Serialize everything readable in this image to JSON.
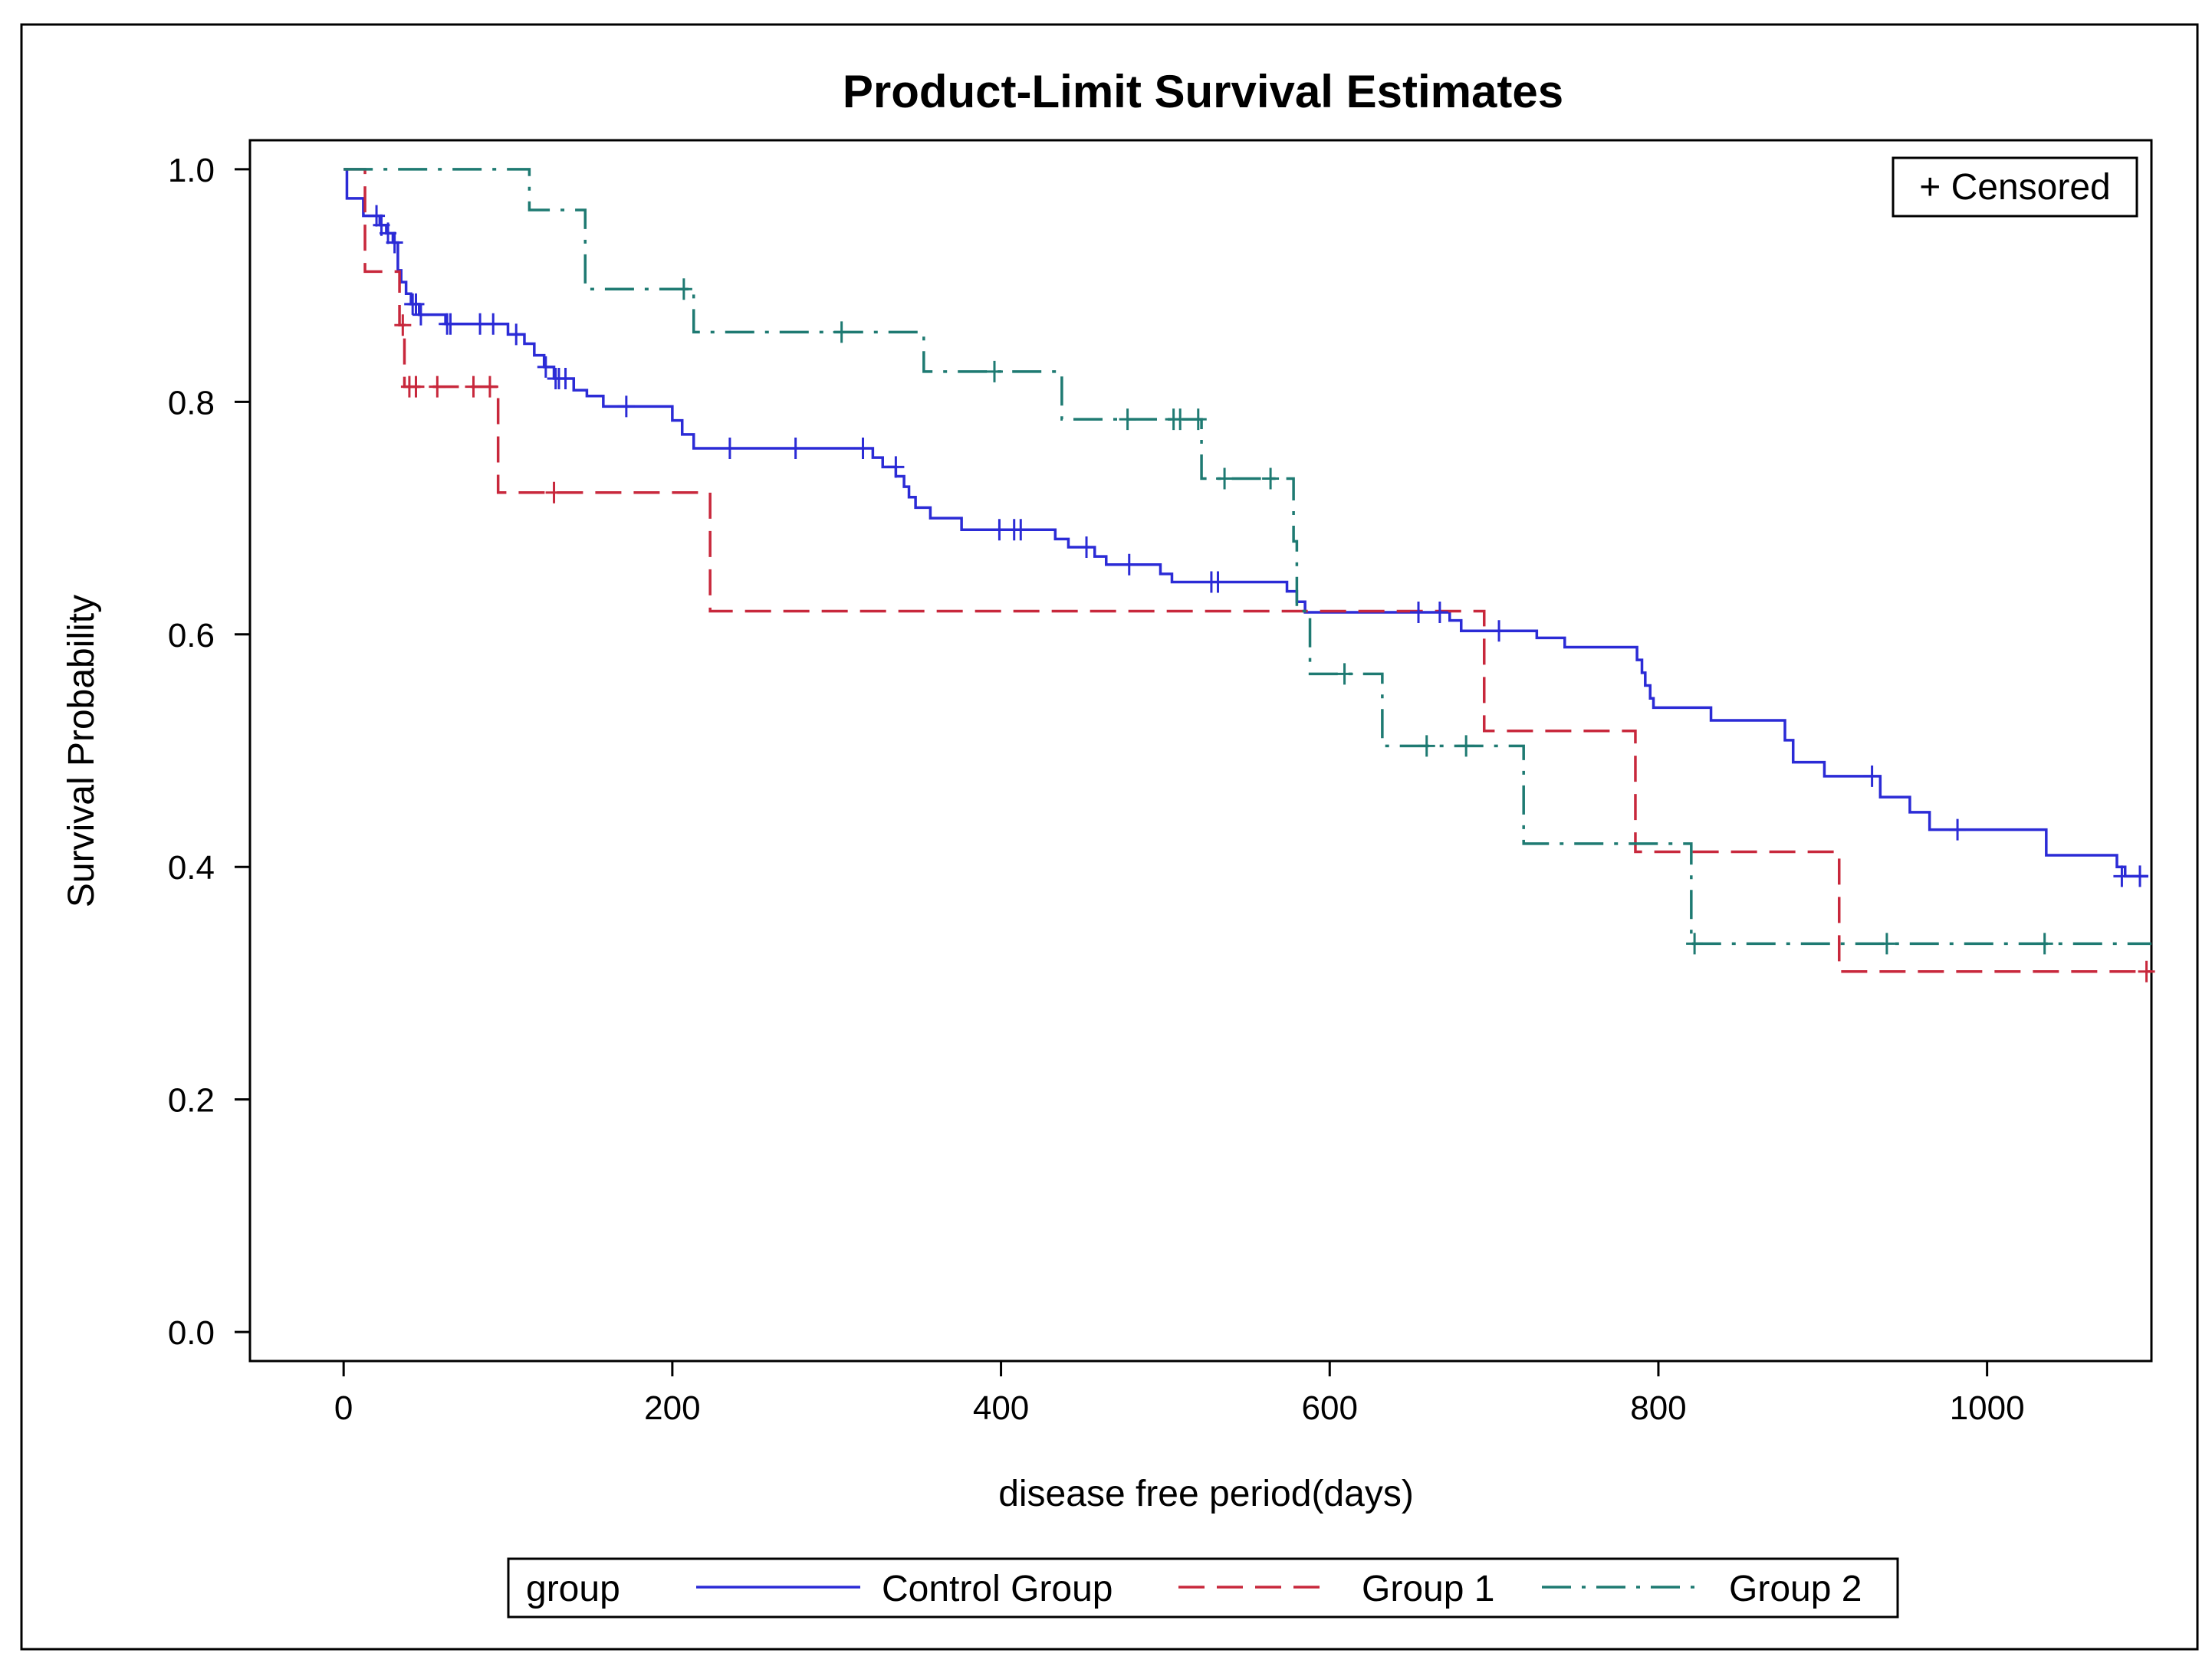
{
  "chart_data": {
    "type": "line",
    "title": "Product-Limit Survival Estimates",
    "xlabel": "disease free period(days)",
    "ylabel": "Survival Probability",
    "xlim": [
      -57,
      1100
    ],
    "ylim": [
      -0.025,
      1.025
    ],
    "x_ticks": [
      0,
      200,
      400,
      600,
      800,
      1000
    ],
    "x_tick_labels": [
      "0",
      "200",
      "400",
      "600",
      "800",
      "1000"
    ],
    "y_ticks": [
      0.0,
      0.2,
      0.4,
      0.6,
      0.8,
      1.0
    ],
    "y_tick_labels": [
      "0.0",
      "0.2",
      "0.4",
      "0.6",
      "0.8",
      "1.0"
    ],
    "censored_legend": "+ Censored",
    "legend_title": "group",
    "legend_position": "bottom",
    "series": [
      {
        "name": "Control Group",
        "color": "#2b2bd6",
        "dash": "solid",
        "steps": [
          [
            0,
            1.0
          ],
          [
            2,
            0.975
          ],
          [
            12,
            0.96
          ],
          [
            22,
            0.952
          ],
          [
            26,
            0.945
          ],
          [
            30,
            0.937
          ],
          [
            33,
            0.913
          ],
          [
            35,
            0.903
          ],
          [
            38,
            0.893
          ],
          [
            41,
            0.884
          ],
          [
            46,
            0.875
          ],
          [
            62,
            0.867
          ],
          [
            100,
            0.858
          ],
          [
            110,
            0.85
          ],
          [
            116,
            0.84
          ],
          [
            122,
            0.83
          ],
          [
            128,
            0.82
          ],
          [
            140,
            0.81
          ],
          [
            148,
            0.805
          ],
          [
            158,
            0.796
          ],
          [
            200,
            0.784
          ],
          [
            206,
            0.772
          ],
          [
            213,
            0.76
          ],
          [
            322,
            0.752
          ],
          [
            328,
            0.744
          ],
          [
            336,
            0.736
          ],
          [
            341,
            0.727
          ],
          [
            344,
            0.718
          ],
          [
            348,
            0.709
          ],
          [
            357,
            0.7
          ],
          [
            376,
            0.69
          ],
          [
            433,
            0.682
          ],
          [
            441,
            0.675
          ],
          [
            457,
            0.667
          ],
          [
            464,
            0.66
          ],
          [
            497,
            0.652
          ],
          [
            504,
            0.645
          ],
          [
            574,
            0.637
          ],
          [
            580,
            0.628
          ],
          [
            585,
            0.619
          ],
          [
            673,
            0.612
          ],
          [
            680,
            0.603
          ],
          [
            726,
            0.597
          ],
          [
            743,
            0.589
          ],
          [
            787,
            0.578
          ],
          [
            790,
            0.567
          ],
          [
            792,
            0.556
          ],
          [
            795,
            0.545
          ],
          [
            797,
            0.537
          ],
          [
            832,
            0.526
          ],
          [
            877,
            0.509
          ],
          [
            882,
            0.49
          ],
          [
            901,
            0.478
          ],
          [
            935,
            0.46
          ],
          [
            953,
            0.447
          ],
          [
            965,
            0.432
          ],
          [
            1036,
            0.41
          ],
          [
            1079,
            0.4
          ],
          [
            1084,
            0.392
          ],
          [
            1098,
            0.392
          ]
        ],
        "censored": [
          [
            20,
            0.96
          ],
          [
            23,
            0.952
          ],
          [
            27,
            0.945
          ],
          [
            31,
            0.937
          ],
          [
            42,
            0.884
          ],
          [
            44,
            0.884
          ],
          [
            47,
            0.875
          ],
          [
            63,
            0.867
          ],
          [
            65,
            0.867
          ],
          [
            83,
            0.867
          ],
          [
            91,
            0.867
          ],
          [
            105,
            0.858
          ],
          [
            123,
            0.83
          ],
          [
            129,
            0.82
          ],
          [
            131,
            0.82
          ],
          [
            135,
            0.82
          ],
          [
            172,
            0.796
          ],
          [
            235,
            0.76
          ],
          [
            275,
            0.76
          ],
          [
            316,
            0.76
          ],
          [
            336,
            0.744
          ],
          [
            399,
            0.69
          ],
          [
            408,
            0.69
          ],
          [
            412,
            0.69
          ],
          [
            452,
            0.675
          ],
          [
            478,
            0.66
          ],
          [
            528,
            0.645
          ],
          [
            532,
            0.645
          ],
          [
            654,
            0.619
          ],
          [
            667,
            0.619
          ],
          [
            703,
            0.603
          ],
          [
            930,
            0.478
          ],
          [
            982,
            0.432
          ],
          [
            1082,
            0.392
          ],
          [
            1093,
            0.392
          ]
        ]
      },
      {
        "name": "Group 1",
        "color": "#c8283c",
        "dash": "long-dash",
        "steps": [
          [
            0,
            1.0
          ],
          [
            13,
            0.912
          ],
          [
            34,
            0.866
          ],
          [
            37,
            0.813
          ],
          [
            94,
            0.722
          ],
          [
            223,
            0.62
          ],
          [
            694,
            0.517
          ],
          [
            786,
            0.413
          ],
          [
            910,
            0.31
          ],
          [
            1100,
            0.31
          ]
        ],
        "censored": [
          [
            36,
            0.866
          ],
          [
            40,
            0.813
          ],
          [
            44,
            0.813
          ],
          [
            57,
            0.813
          ],
          [
            79,
            0.813
          ],
          [
            89,
            0.813
          ],
          [
            128,
            0.722
          ],
          [
            1097,
            0.31
          ]
        ]
      },
      {
        "name": "Group 2",
        "color": "#1e7a72",
        "dash": "dash-dot",
        "steps": [
          [
            0,
            1.0
          ],
          [
            113,
            0.965
          ],
          [
            147,
            0.897
          ],
          [
            213,
            0.86
          ],
          [
            353,
            0.826
          ],
          [
            437,
            0.785
          ],
          [
            522,
            0.734
          ],
          [
            578,
            0.68
          ],
          [
            580,
            0.62
          ],
          [
            588,
            0.566
          ],
          [
            632,
            0.504
          ],
          [
            718,
            0.42
          ],
          [
            820,
            0.334
          ],
          [
            1100,
            0.334
          ]
        ],
        "censored": [
          [
            207,
            0.897
          ],
          [
            303,
            0.86
          ],
          [
            396,
            0.826
          ],
          [
            477,
            0.785
          ],
          [
            505,
            0.785
          ],
          [
            509,
            0.785
          ],
          [
            520,
            0.785
          ],
          [
            536,
            0.734
          ],
          [
            564,
            0.734
          ],
          [
            609,
            0.566
          ],
          [
            659,
            0.504
          ],
          [
            683,
            0.504
          ],
          [
            822,
            0.334
          ],
          [
            939,
            0.334
          ],
          [
            1035,
            0.334
          ]
        ]
      }
    ]
  }
}
